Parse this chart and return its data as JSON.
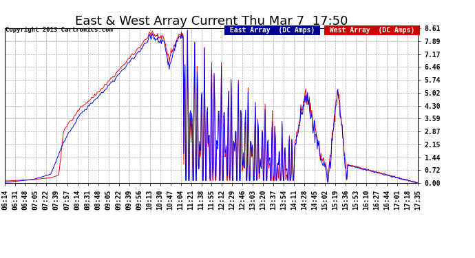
{
  "title": "East & West Array Current Thu Mar 7  17:50",
  "copyright": "Copyright 2013 Cartronics.com",
  "legend_east": "East Array  (DC Amps)",
  "legend_west": "West Array  (DC Amps)",
  "east_color": "#0000ff",
  "west_color": "#ff0000",
  "legend_east_bg": "#000099",
  "legend_west_bg": "#cc0000",
  "yticks": [
    0.0,
    0.72,
    1.44,
    2.15,
    2.87,
    3.59,
    4.3,
    5.02,
    5.74,
    6.46,
    7.17,
    7.89,
    8.61
  ],
  "ymax": 8.61,
  "ymin": 0.0,
  "background_color": "#ffffff",
  "plot_bg": "#ffffff",
  "grid_color": "#aaaaaa",
  "title_fontsize": 13,
  "tick_fontsize": 7
}
